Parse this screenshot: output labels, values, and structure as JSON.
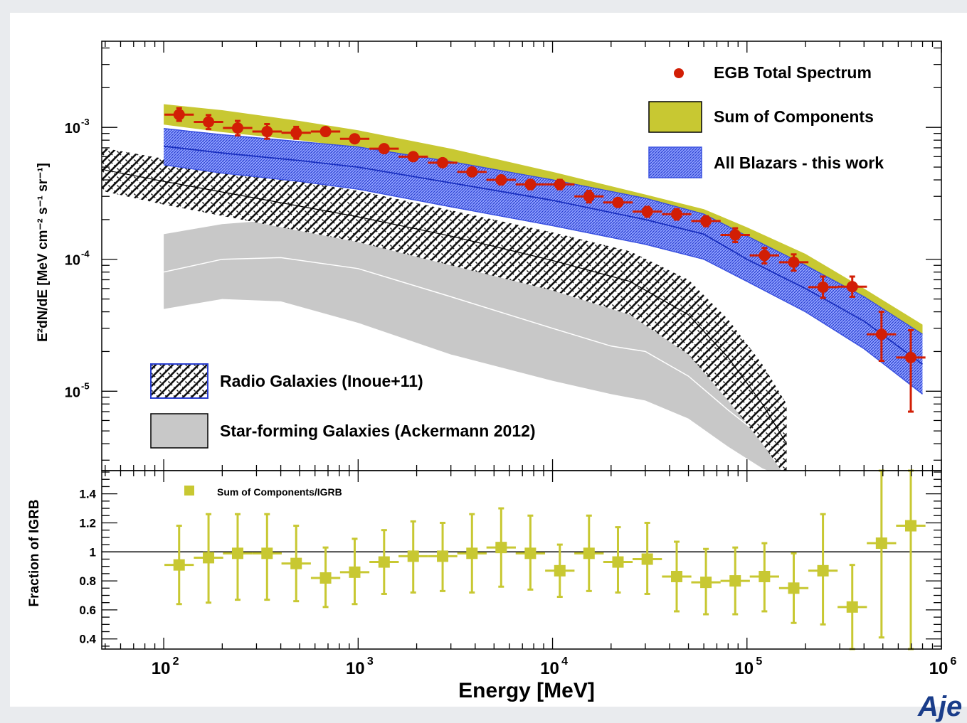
{
  "corner_text": "Aje",
  "chart_data": [
    {
      "type": "scatter",
      "panel": "top",
      "xlabel": "Energy [MeV]",
      "ylabel": "E²dN/dE [MeV cm⁻² s⁻¹ sr⁻¹]",
      "x_scale": "log",
      "y_scale": "log",
      "xlim": [
        48,
        1000000
      ],
      "ylim": [
        2.5e-06,
        0.0045
      ],
      "x_tick_labels": [
        {
          "base": "10",
          "exp": "2"
        },
        {
          "base": "10",
          "exp": "3"
        },
        {
          "base": "10",
          "exp": "4"
        },
        {
          "base": "10",
          "exp": "5"
        },
        {
          "base": "10",
          "exp": "6"
        }
      ],
      "y_tick_labels": [
        {
          "base": "10",
          "exp": "-3"
        },
        {
          "base": "10",
          "exp": "-4"
        },
        {
          "base": "10",
          "exp": "-5"
        }
      ],
      "legend": [
        {
          "label": "EGB Total Spectrum",
          "style": "marker",
          "color": "#d21e05",
          "position": "top-right"
        },
        {
          "label": "Sum of Components",
          "style": "box",
          "color": "#c8c832",
          "position": "top-right"
        },
        {
          "label": "All Blazars - this work",
          "style": "hatch-blue",
          "color": "#3b52e0",
          "position": "top-right"
        },
        {
          "label": "Radio Galaxies (Inoue+11)",
          "style": "hatch-black",
          "color": "#000000",
          "position": "bottom-left"
        },
        {
          "label": "Star-forming Galaxies (Ackermann 2012)",
          "style": "box",
          "color": "#c8c8c8",
          "position": "bottom-left"
        }
      ],
      "series": [
        {
          "name": "EGB Total Spectrum",
          "color": "#d21e05",
          "points": [
            {
              "x": 120,
              "y": 0.00125,
              "ylo": 0.00112,
              "yhi": 0.0014
            },
            {
              "x": 170,
              "y": 0.0011,
              "ylo": 0.00097,
              "yhi": 0.00124
            },
            {
              "x": 240,
              "y": 0.00099,
              "ylo": 0.00087,
              "yhi": 0.00112
            },
            {
              "x": 340,
              "y": 0.00093,
              "ylo": 0.00082,
              "yhi": 0.00106
            },
            {
              "x": 480,
              "y": 0.00091,
              "ylo": 0.00082,
              "yhi": 0.00101
            },
            {
              "x": 680,
              "y": 0.00093,
              "ylo": 0.00087,
              "yhi": 0.00099
            },
            {
              "x": 960,
              "y": 0.00082,
              "ylo": 0.00077,
              "yhi": 0.00088
            },
            {
              "x": 1360,
              "y": 0.00069,
              "ylo": 0.00066,
              "yhi": 0.00072
            },
            {
              "x": 1920,
              "y": 0.0006,
              "ylo": 0.00057,
              "yhi": 0.00064
            },
            {
              "x": 2720,
              "y": 0.00054,
              "ylo": 0.00051,
              "yhi": 0.00057
            },
            {
              "x": 3850,
              "y": 0.00046,
              "ylo": 0.00043,
              "yhi": 0.00049
            },
            {
              "x": 5440,
              "y": 0.0004,
              "ylo": 0.00037,
              "yhi": 0.00043
            },
            {
              "x": 7690,
              "y": 0.00037,
              "ylo": 0.00034,
              "yhi": 0.0004
            },
            {
              "x": 10900,
              "y": 0.00037,
              "ylo": 0.00034,
              "yhi": 0.0004
            },
            {
              "x": 15400,
              "y": 0.0003,
              "ylo": 0.00027,
              "yhi": 0.00033
            },
            {
              "x": 21700,
              "y": 0.00027,
              "ylo": 0.00025,
              "yhi": 0.00029
            },
            {
              "x": 30700,
              "y": 0.00023,
              "ylo": 0.00021,
              "yhi": 0.00025
            },
            {
              "x": 43500,
              "y": 0.00022,
              "ylo": 0.0002,
              "yhi": 0.00024
            },
            {
              "x": 61500,
              "y": 0.000195,
              "ylo": 0.000178,
              "yhi": 0.000212
            },
            {
              "x": 87000,
              "y": 0.000153,
              "ylo": 0.000135,
              "yhi": 0.000172
            },
            {
              "x": 123000,
              "y": 0.000107,
              "ylo": 9.3e-05,
              "yhi": 0.000122
            },
            {
              "x": 174000,
              "y": 9.5e-05,
              "ylo": 8.2e-05,
              "yhi": 0.000109
            },
            {
              "x": 246000,
              "y": 6.15e-05,
              "ylo": 5.1e-05,
              "yhi": 7.4e-05
            },
            {
              "x": 348000,
              "y": 6.2e-05,
              "ylo": 5.2e-05,
              "yhi": 7.4e-05
            },
            {
              "x": 492000,
              "y": 2.7e-05,
              "ylo": 1.7e-05,
              "yhi": 4e-05
            },
            {
              "x": 696000,
              "y": 1.8e-05,
              "ylo": 7e-06,
              "yhi": 2.9e-05
            }
          ]
        },
        {
          "name": "Sum of Components",
          "color": "#c8c832",
          "band": {
            "x": [
              100,
              200,
              500,
              1000,
              3000,
              10000,
              30000,
              60000,
              100000,
              200000,
              400000,
              800000
            ],
            "lo": [
              0.00105,
              0.00092,
              0.0008,
              0.0007,
              0.00052,
              0.00035,
              0.00024,
              0.000185,
              0.000125,
              7.5e-05,
              4e-05,
              2.3e-05
            ],
            "hi": [
              0.0015,
              0.00135,
              0.00112,
              0.00095,
              0.00069,
              0.00046,
              0.00031,
              0.00024,
              0.000175,
              0.00011,
              6e-05,
              3.2e-05
            ]
          }
        },
        {
          "name": "All Blazars - this work",
          "color": "#3b52e0",
          "band": {
            "x": [
              100,
              200,
              500,
              1000,
              3000,
              10000,
              30000,
              60000,
              100000,
              200000,
              400000,
              800000
            ],
            "lo": [
              0.00052,
              0.00045,
              0.00039,
              0.00034,
              0.00025,
              0.00018,
              0.00013,
              0.0001,
              6.8e-05,
              4e-05,
              2.1e-05,
              9.5e-06
            ],
            "mid": [
              0.00072,
              0.00064,
              0.00056,
              0.0005,
              0.00038,
              0.00028,
              0.0002,
              0.000155,
              0.0001,
              6e-05,
              3.4e-05,
              1.6e-05
            ],
            "hi": [
              0.00098,
              0.00088,
              0.00078,
              0.00071,
              0.00055,
              0.0004,
              0.00029,
              0.00022,
              0.00015,
              9e-05,
              5.2e-05,
              2.7e-05
            ]
          }
        },
        {
          "name": "Radio Galaxies (Inoue+11)",
          "color": "#000000",
          "band": {
            "x": [
              48,
              100,
              300,
              1000,
              3000,
              10000,
              25000,
              50000,
              80000,
              120000,
              160000
            ],
            "lo": [
              0.00033,
              0.00026,
              0.00019,
              0.000135,
              9e-05,
              5.8e-05,
              3.8e-05,
              1.9e-05,
              8.5e-06,
              4e-06,
              2.2e-06
            ],
            "mid": [
              0.00048,
              0.00039,
              0.00029,
              0.00021,
              0.00015,
              9.8e-05,
              6.8e-05,
              3.8e-05,
              1.8e-05,
              8e-06,
              4e-06
            ],
            "hi": [
              0.0007,
              0.00058,
              0.00044,
              0.00033,
              0.000235,
              0.00016,
              0.000115,
              7e-05,
              3.5e-05,
              1.6e-05,
              8e-06
            ]
          }
        },
        {
          "name": "Star-forming Galaxies (Ackermann 2012)",
          "color": "#c8c8c8",
          "band": {
            "x": [
              100,
              200,
              400,
              1000,
              3000,
              10000,
              20000,
              30000,
              50000,
              80000,
              120000,
              160000
            ],
            "lo": [
              4.2e-05,
              5e-05,
              4.8e-05,
              3.3e-05,
              1.9e-05,
              1.2e-05,
              9.5e-06,
              8.5e-06,
              6.2e-06,
              3.8e-06,
              2.6e-06,
              2.2e-06
            ],
            "mid": [
              8e-05,
              0.0001,
              0.000103,
              8.5e-05,
              5.2e-05,
              3e-05,
              2.2e-05,
              2e-05,
              1.3e-05,
              7.2e-06,
              4.5e-06,
              3.2e-06
            ],
            "hi": [
              0.000155,
              0.000185,
              0.0002,
              0.00018,
              0.000115,
              7e-05,
              5.2e-05,
              4.3e-05,
              2.8e-05,
              1.6e-05,
              9e-06,
              5.5e-06
            ]
          }
        }
      ]
    },
    {
      "type": "scatter",
      "panel": "bottom",
      "xlabel": "Energy [MeV]",
      "ylabel": "Fraction of IGRB",
      "x_scale": "log",
      "xlim": [
        48,
        1000000
      ],
      "ylim": [
        0.33,
        1.56
      ],
      "y_tick_labels": [
        "0.4",
        "0.6",
        "0.8",
        "1",
        "1.2",
        "1.4"
      ],
      "reference_line": 1,
      "legend": [
        {
          "label": "Sum of Components/IGRB",
          "style": "square",
          "color": "#c8c832",
          "position": "top-left"
        }
      ],
      "series": [
        {
          "name": "Sum of Components/IGRB",
          "color": "#c8c832",
          "points": [
            {
              "x": 120,
              "y": 0.91,
              "ylo": 0.64,
              "yhi": 1.18
            },
            {
              "x": 170,
              "y": 0.96,
              "ylo": 0.65,
              "yhi": 1.26
            },
            {
              "x": 240,
              "y": 0.99,
              "ylo": 0.67,
              "yhi": 1.26
            },
            {
              "x": 340,
              "y": 0.99,
              "ylo": 0.67,
              "yhi": 1.26
            },
            {
              "x": 480,
              "y": 0.92,
              "ylo": 0.66,
              "yhi": 1.18
            },
            {
              "x": 680,
              "y": 0.82,
              "ylo": 0.62,
              "yhi": 1.03
            },
            {
              "x": 960,
              "y": 0.86,
              "ylo": 0.64,
              "yhi": 1.09
            },
            {
              "x": 1360,
              "y": 0.93,
              "ylo": 0.71,
              "yhi": 1.15
            },
            {
              "x": 1920,
              "y": 0.97,
              "ylo": 0.72,
              "yhi": 1.21
            },
            {
              "x": 2720,
              "y": 0.97,
              "ylo": 0.73,
              "yhi": 1.2
            },
            {
              "x": 3850,
              "y": 0.99,
              "ylo": 0.72,
              "yhi": 1.26
            },
            {
              "x": 5440,
              "y": 1.03,
              "ylo": 0.76,
              "yhi": 1.3
            },
            {
              "x": 7690,
              "y": 0.99,
              "ylo": 0.74,
              "yhi": 1.25
            },
            {
              "x": 10900,
              "y": 0.87,
              "ylo": 0.69,
              "yhi": 1.05
            },
            {
              "x": 15400,
              "y": 0.99,
              "ylo": 0.73,
              "yhi": 1.25
            },
            {
              "x": 21700,
              "y": 0.93,
              "ylo": 0.72,
              "yhi": 1.17
            },
            {
              "x": 30700,
              "y": 0.95,
              "ylo": 0.71,
              "yhi": 1.2
            },
            {
              "x": 43500,
              "y": 0.83,
              "ylo": 0.59,
              "yhi": 1.07
            },
            {
              "x": 61500,
              "y": 0.79,
              "ylo": 0.57,
              "yhi": 1.02
            },
            {
              "x": 87000,
              "y": 0.8,
              "ylo": 0.57,
              "yhi": 1.03
            },
            {
              "x": 123000,
              "y": 0.83,
              "ylo": 0.59,
              "yhi": 1.06
            },
            {
              "x": 174000,
              "y": 0.75,
              "ylo": 0.51,
              "yhi": 0.99
            },
            {
              "x": 246000,
              "y": 0.87,
              "ylo": 0.5,
              "yhi": 1.26
            },
            {
              "x": 348000,
              "y": 0.62,
              "ylo": 0.33,
              "yhi": 0.91
            },
            {
              "x": 492000,
              "y": 1.06,
              "ylo": 0.41,
              "yhi": 1.56
            },
            {
              "x": 696000,
              "y": 1.18,
              "ylo": 0.33,
              "yhi": 1.56
            }
          ]
        }
      ]
    }
  ]
}
